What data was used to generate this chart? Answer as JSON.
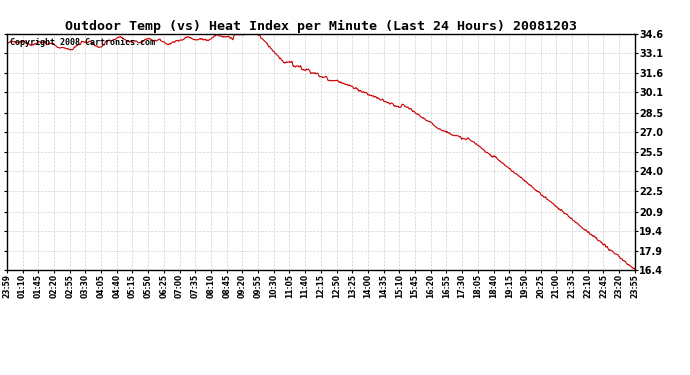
{
  "title": "Outdoor Temp (vs) Heat Index per Minute (Last 24 Hours) 20081203",
  "copyright_text": "Copyright 2008 Cartronics.com",
  "line_color": "#cc0000",
  "background_color": "#ffffff",
  "grid_color": "#cccccc",
  "yticks": [
    16.4,
    17.9,
    19.4,
    20.9,
    22.5,
    24.0,
    25.5,
    27.0,
    28.5,
    30.1,
    31.6,
    33.1,
    34.6
  ],
  "ymin": 16.4,
  "ymax": 34.6,
  "xtick_labels": [
    "23:59",
    "01:10",
    "01:45",
    "02:20",
    "02:55",
    "03:30",
    "04:05",
    "04:40",
    "05:15",
    "05:50",
    "06:25",
    "07:00",
    "07:35",
    "08:10",
    "08:45",
    "09:20",
    "09:55",
    "10:30",
    "11:05",
    "11:40",
    "12:15",
    "12:50",
    "13:25",
    "14:00",
    "14:35",
    "15:10",
    "15:45",
    "16:20",
    "16:55",
    "17:30",
    "18:05",
    "18:40",
    "19:15",
    "19:50",
    "20:25",
    "21:00",
    "21:35",
    "22:10",
    "22:45",
    "23:20",
    "23:55"
  ]
}
